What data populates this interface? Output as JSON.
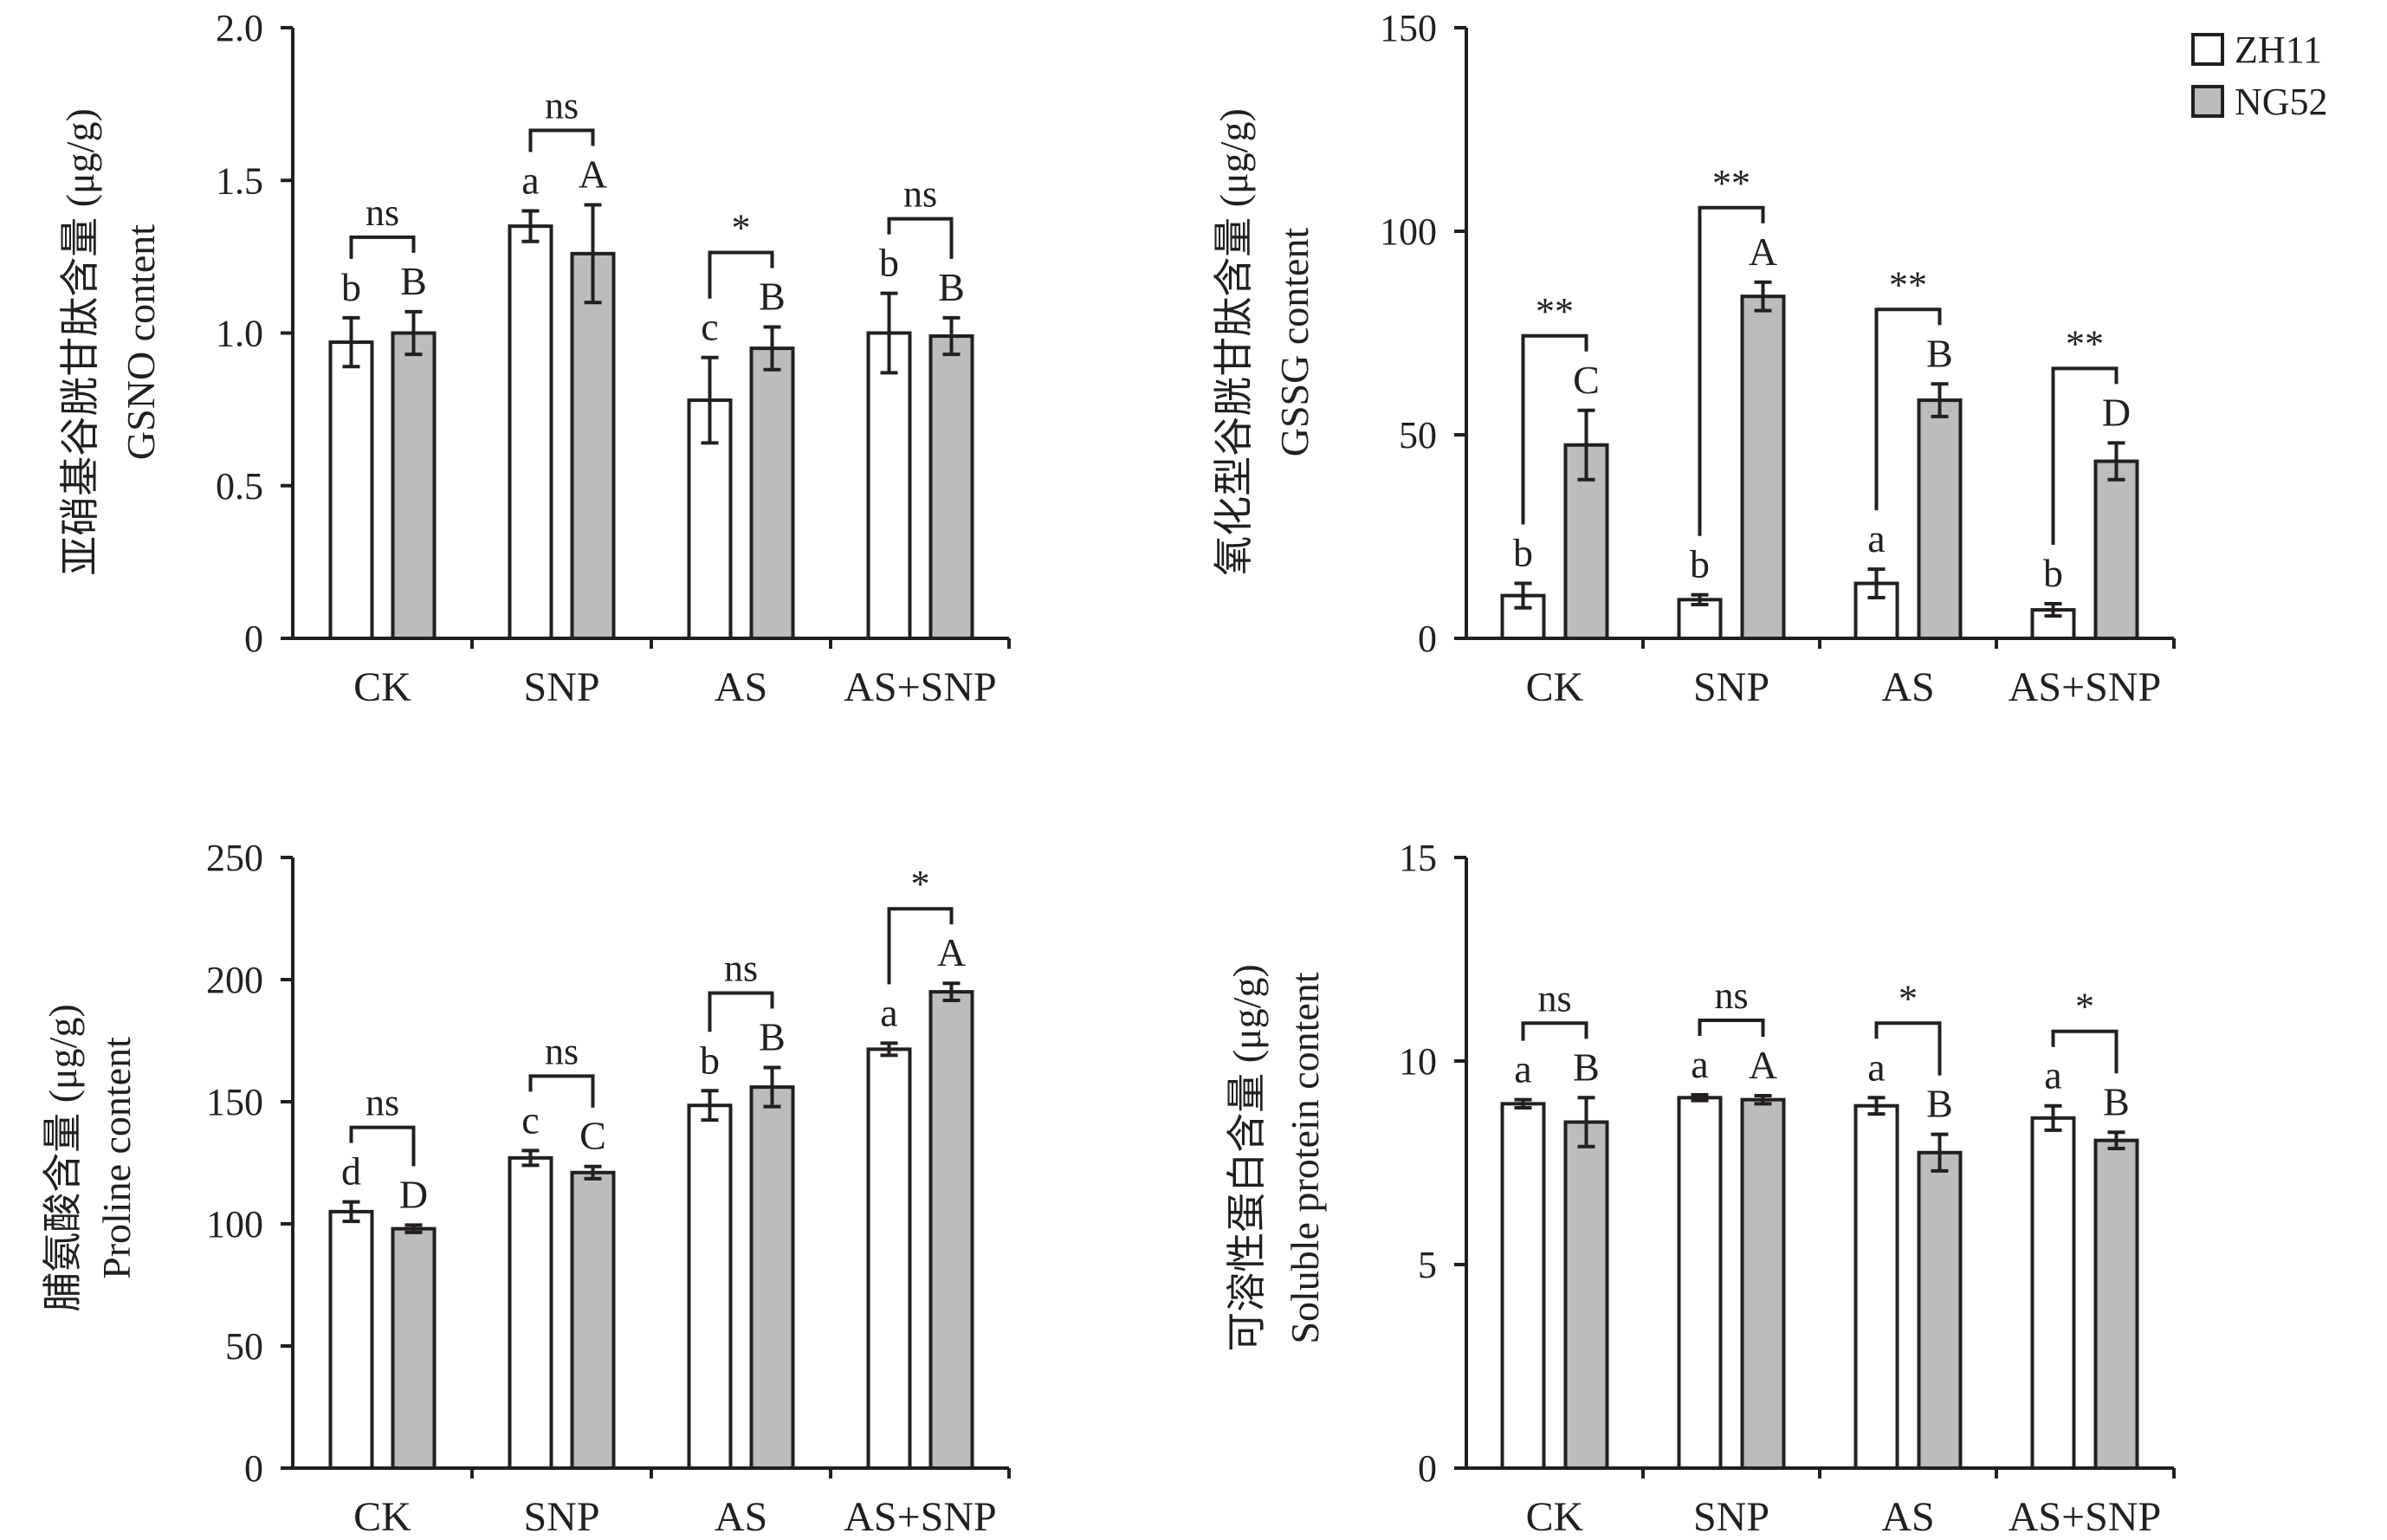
{
  "legend": {
    "position": "top-right",
    "items": [
      {
        "name": "ZH11",
        "color": "#ffffff"
      },
      {
        "name": "NG52",
        "color": "#bcbcbc"
      }
    ]
  },
  "colors": {
    "axis": "#231f20",
    "zh11": "#ffffff",
    "ng52": "#bcbcbc"
  },
  "chart_data": [
    {
      "type": "bar",
      "ylabel_cn": "亚硝基谷胱甘肽含量 (μg/g)",
      "ylabel_en": "GSNO content",
      "categories": [
        "CK",
        "SNP",
        "AS",
        "AS+SNP"
      ],
      "ylim": [
        0,
        2.0
      ],
      "yticks": [
        "0",
        "0.5",
        "1.0",
        "1.5",
        "2.0"
      ],
      "ytick_values": [
        0,
        0.5,
        1.0,
        1.5,
        2.0
      ],
      "series": [
        {
          "name": "ZH11",
          "values": [
            0.97,
            1.35,
            0.78,
            1.0
          ],
          "errors": [
            0.08,
            0.05,
            0.14,
            0.13
          ],
          "letters": [
            "b",
            "a",
            "c",
            "b"
          ]
        },
        {
          "name": "NG52",
          "values": [
            1.0,
            1.26,
            0.95,
            0.99
          ],
          "errors": [
            0.07,
            0.16,
            0.07,
            0.06
          ],
          "letters": [
            "B",
            "A",
            "B",
            "B"
          ]
        }
      ],
      "significance": [
        "ns",
        "ns",
        "*",
        "ns"
      ]
    },
    {
      "type": "bar",
      "ylabel_cn": "氧化型谷胱甘肽含量 (μg/g)",
      "ylabel_en": "GSSG content",
      "categories": [
        "CK",
        "SNP",
        "AS",
        "AS+SNP"
      ],
      "ylim": [
        0,
        150
      ],
      "yticks": [
        "0",
        "50",
        "100",
        "150"
      ],
      "ytick_values": [
        0,
        50,
        100,
        150
      ],
      "series": [
        {
          "name": "ZH11",
          "values": [
            10.5,
            9.5,
            13.5,
            7.0
          ],
          "errors": [
            3.0,
            1.2,
            3.5,
            1.5
          ],
          "letters": [
            "b",
            "b",
            "a",
            "b"
          ]
        },
        {
          "name": "NG52",
          "values": [
            47.5,
            84.0,
            58.5,
            43.5
          ],
          "errors": [
            8.5,
            3.5,
            4.0,
            4.5
          ],
          "letters": [
            "C",
            "A",
            "B",
            "D"
          ]
        }
      ],
      "significance": [
        "**",
        "**",
        "**",
        "**"
      ]
    },
    {
      "type": "bar",
      "ylabel_cn": "脯氨酸含量 (μg/g)",
      "ylabel_en": "Proline content",
      "categories": [
        "CK",
        "SNP",
        "AS",
        "AS+SNP"
      ],
      "ylim": [
        0,
        250
      ],
      "yticks": [
        "0",
        "50",
        "100",
        "150",
        "200",
        "250"
      ],
      "ytick_values": [
        0,
        50,
        100,
        150,
        200,
        250
      ],
      "series": [
        {
          "name": "ZH11",
          "values": [
            105,
            127,
            148.5,
            171.5
          ],
          "errors": [
            4,
            3,
            6,
            2.5
          ],
          "letters": [
            "d",
            "c",
            "b",
            "a"
          ]
        },
        {
          "name": "NG52",
          "values": [
            98,
            121,
            156,
            195
          ],
          "errors": [
            1.5,
            2.5,
            8,
            3.5
          ],
          "letters": [
            "D",
            "C",
            "B",
            "A"
          ]
        }
      ],
      "significance": [
        "ns",
        "ns",
        "ns",
        "*"
      ]
    },
    {
      "type": "bar",
      "ylabel_cn": "可溶性蛋白含量 (μg/g)",
      "ylabel_en": "Soluble protein content",
      "categories": [
        "CK",
        "SNP",
        "AS",
        "AS+SNP"
      ],
      "ylim": [
        0,
        15
      ],
      "yticks": [
        "0",
        "5",
        "10",
        "15"
      ],
      "ytick_values": [
        0,
        5,
        10,
        15
      ],
      "series": [
        {
          "name": "ZH11",
          "values": [
            8.95,
            9.1,
            8.9,
            8.6
          ],
          "errors": [
            0.1,
            0.07,
            0.2,
            0.3
          ],
          "letters": [
            "a",
            "a",
            "a",
            "a"
          ]
        },
        {
          "name": "NG52",
          "values": [
            8.5,
            9.05,
            7.75,
            8.05
          ],
          "errors": [
            0.6,
            0.1,
            0.45,
            0.2
          ],
          "letters": [
            "B",
            "A",
            "B",
            "B"
          ]
        }
      ],
      "significance": [
        "ns",
        "ns",
        "*",
        "*"
      ]
    }
  ]
}
